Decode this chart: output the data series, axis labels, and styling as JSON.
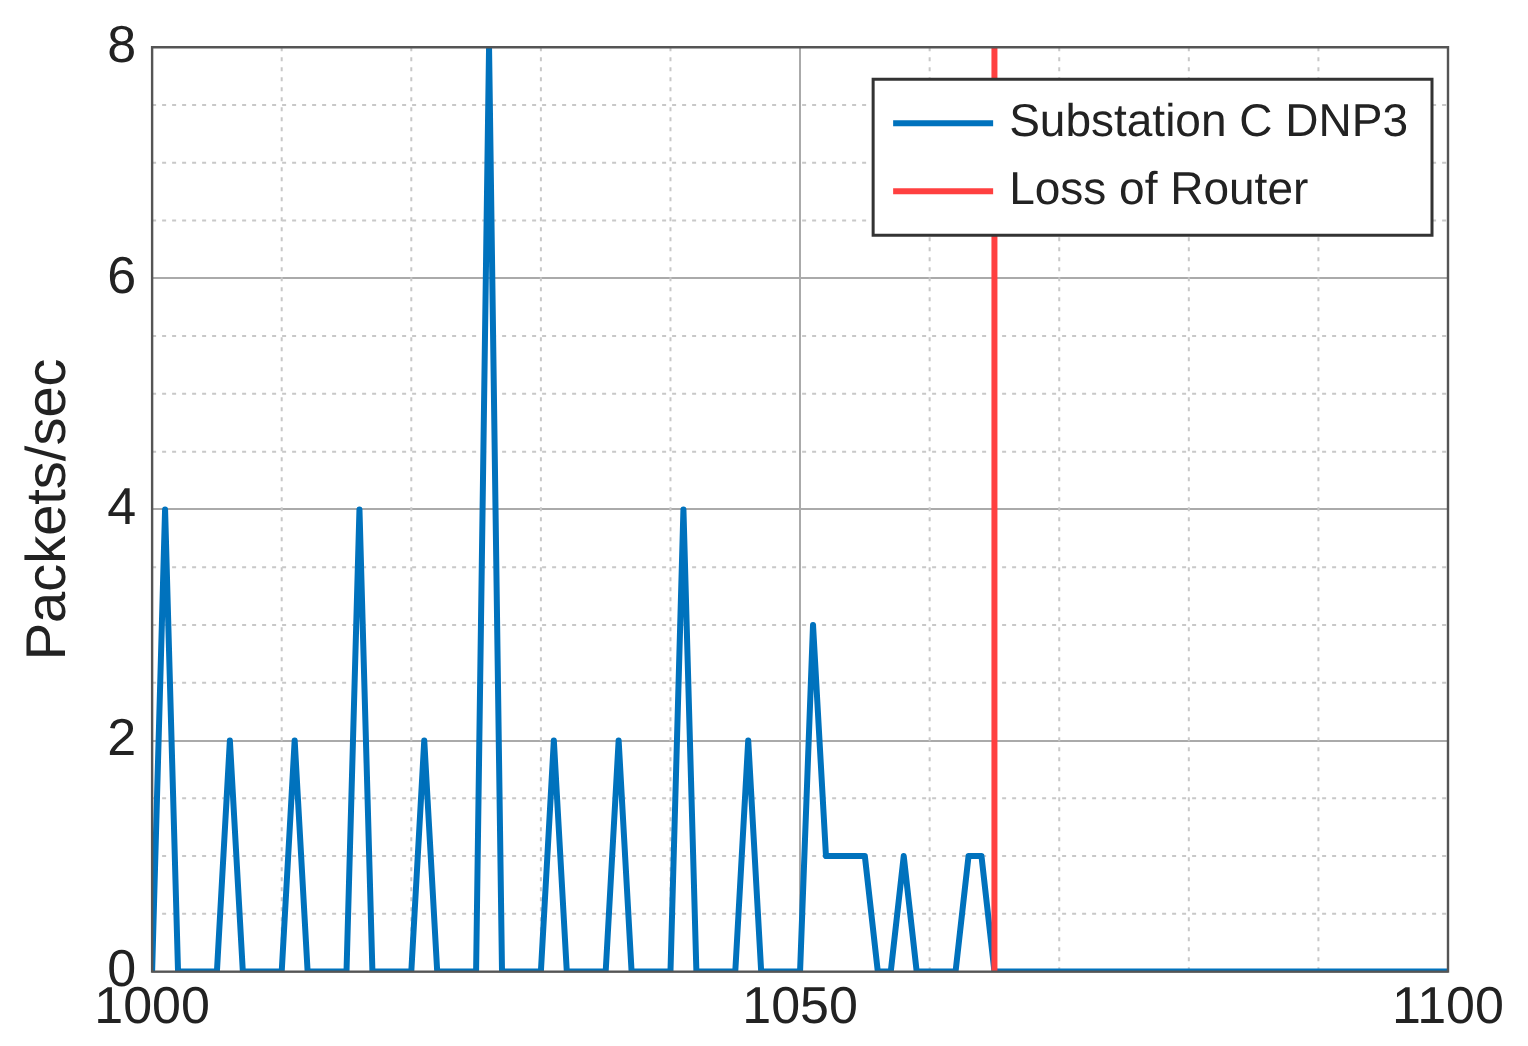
{
  "chart_data": {
    "type": "line",
    "ylabel": "Packets/sec",
    "series": [
      {
        "name": "Substation C DNP3",
        "color": "#0072bd",
        "x": [
          1000,
          1001,
          1002,
          1005,
          1006,
          1007,
          1010,
          1011,
          1012,
          1015,
          1016,
          1017,
          1020,
          1021,
          1022,
          1025,
          1026,
          1027,
          1030,
          1031,
          1032,
          1035,
          1036,
          1037,
          1040,
          1041,
          1042,
          1045,
          1046,
          1047,
          1050,
          1051,
          1052,
          1055,
          1056,
          1057,
          1058,
          1059,
          1062,
          1063,
          1064,
          1065,
          1100
        ],
        "values": [
          0,
          4,
          0,
          0,
          2,
          0,
          0,
          2,
          0,
          0,
          4,
          0,
          0,
          2,
          0,
          0,
          8,
          0,
          0,
          2,
          0,
          0,
          2,
          0,
          0,
          4,
          0,
          0,
          2,
          0,
          0,
          3,
          1,
          1,
          0,
          0,
          1,
          0,
          0,
          1,
          1,
          0,
          0
        ]
      }
    ],
    "ref_lines": [
      {
        "axis": "x",
        "value": 1065,
        "label": "Loss of Router",
        "color": "#ff4040"
      }
    ],
    "xlim": [
      1000,
      1100
    ],
    "xticks": [
      1000,
      1050,
      1100
    ],
    "ylim": [
      0,
      8
    ],
    "yticks": [
      0,
      2,
      4,
      6,
      8
    ],
    "grid": true,
    "legend": "top right",
    "marker": "none",
    "line_style": "solid"
  }
}
